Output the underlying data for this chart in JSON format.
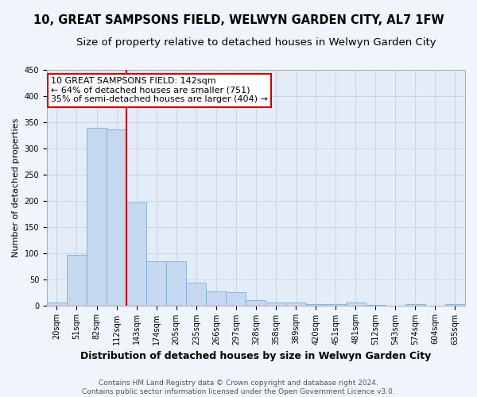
{
  "title": "10, GREAT SAMPSONS FIELD, WELWYN GARDEN CITY, AL7 1FW",
  "subtitle": "Size of property relative to detached houses in Welwyn Garden City",
  "xlabel": "Distribution of detached houses by size in Welwyn Garden City",
  "ylabel": "Number of detached properties",
  "bar_color": "#c5d8f0",
  "bar_edgecolor": "#7aaed4",
  "grid_color": "#c8d4e8",
  "annotation_line_color": "#cc0000",
  "categories": [
    "20sqm",
    "51sqm",
    "82sqm",
    "112sqm",
    "143sqm",
    "174sqm",
    "205sqm",
    "235sqm",
    "266sqm",
    "297sqm",
    "328sqm",
    "358sqm",
    "389sqm",
    "420sqm",
    "451sqm",
    "481sqm",
    "512sqm",
    "543sqm",
    "574sqm",
    "604sqm",
    "635sqm"
  ],
  "values": [
    5,
    97,
    340,
    336,
    197,
    85,
    85,
    43,
    26,
    25,
    10,
    5,
    5,
    3,
    2,
    5,
    1,
    0,
    2,
    0,
    2
  ],
  "red_line_index": 4,
  "annotation_text_line1": "10 GREAT SAMPSONS FIELD: 142sqm",
  "annotation_text_line2": "← 64% of detached houses are smaller (751)",
  "annotation_text_line3": "35% of semi-detached houses are larger (404) →",
  "footer_text": "Contains HM Land Registry data © Crown copyright and database right 2024.\nContains public sector information licensed under the Open Government Licence v3.0.",
  "ylim": [
    0,
    450
  ],
  "yticks": [
    0,
    50,
    100,
    150,
    200,
    250,
    300,
    350,
    400,
    450
  ],
  "fig_bg": "#f0f4fb",
  "plot_bg": "#e4ecf7",
  "title_fontsize": 10.5,
  "subtitle_fontsize": 9.5,
  "xlabel_fontsize": 9,
  "ylabel_fontsize": 8,
  "tick_fontsize": 7,
  "annotation_fontsize": 8,
  "footer_fontsize": 6.5
}
